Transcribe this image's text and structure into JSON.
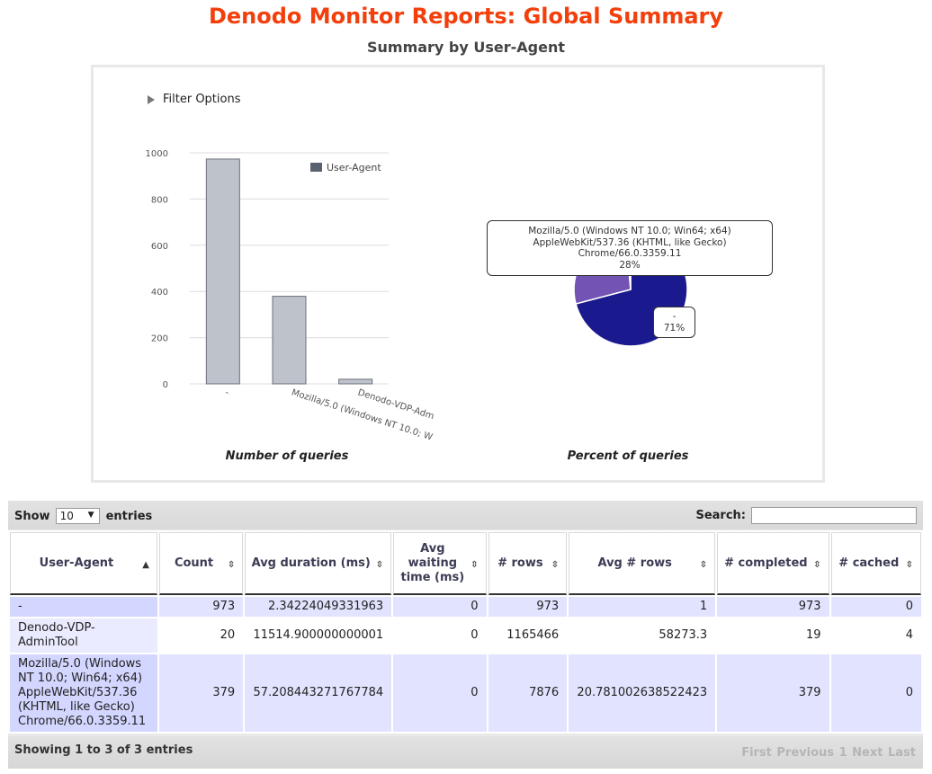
{
  "header": {
    "title": "Denodo Monitor Reports: Global Summary",
    "subtitle": "Summary by User-Agent"
  },
  "filter": {
    "label": "Filter Options"
  },
  "captions": {
    "bar": "Number of queries",
    "pie": "Percent of queries"
  },
  "colors": {
    "title": "#f23f0c",
    "bar_fill": "#bec2cb",
    "bar_stroke": "#6b6f78",
    "pie_main": "#1a1a8e",
    "pie_second": "#7354b4",
    "legend_swatch": "#5a6270"
  },
  "chart_data": [
    {
      "type": "bar",
      "categories": [
        "-",
        "Mozilla/5.0 (Windows NT 10.0; W",
        "Denodo-VDP-Adm"
      ],
      "series": [
        {
          "name": "User-Agent",
          "values": [
            973,
            379,
            20
          ]
        }
      ],
      "yticks": [
        "0",
        "200",
        "400",
        "600",
        "800",
        "1000"
      ],
      "ylim": [
        0,
        1000
      ],
      "grid": true,
      "legend": "top-right",
      "xlabel": "Number of queries"
    },
    {
      "type": "pie",
      "labels": [
        "-",
        "Mozilla/5.0 (Windows NT 10.0; Win64; x64) AppleWebKit/537.36 (KHTML, like Gecko) Chrome/66.0.3359.11",
        "Denodo-VDP-AdminTool"
      ],
      "values": [
        973,
        379,
        20
      ],
      "tooltips": [
        {
          "lines": [
            "-",
            "71%"
          ]
        },
        {
          "lines": [
            "Mozilla/5.0 (Windows NT 10.0; Win64; x64)",
            "AppleWebKit/537.36 (KHTML, like Gecko)",
            "Chrome/66.0.3359.11",
            "28%"
          ]
        }
      ],
      "xlabel": "Percent of queries"
    }
  ],
  "table_controls": {
    "show_label": "Show",
    "entries_label": "entries",
    "length_value": "10",
    "search_label": "Search:",
    "info": "Showing 1 to 3 of 3 entries",
    "paging": [
      "First",
      "Previous",
      "1",
      "Next",
      "Last"
    ]
  },
  "table": {
    "columns": [
      "User-Agent",
      "Count",
      "Avg duration (ms)",
      "Avg waiting time (ms)",
      "# rows",
      "Avg # rows",
      "# completed",
      "# cached"
    ],
    "sort_icons": [
      "▲",
      "⇳",
      "⇳",
      "⇳",
      "⇳",
      "⇳",
      "⇳",
      "⇳"
    ],
    "rows": [
      [
        "-",
        "973",
        "2.34224049331963",
        "0",
        "973",
        "1",
        "973",
        "0"
      ],
      [
        "Denodo-VDP-AdminTool",
        "20",
        "11514.900000000001",
        "0",
        "1165466",
        "58273.3",
        "19",
        "4"
      ],
      [
        "Mozilla/5.0 (Windows NT 10.0; Win64; x64) AppleWebKit/537.36 (KHTML, like Gecko) Chrome/66.0.3359.11",
        "379",
        "57.208443271767784",
        "0",
        "7876",
        "20.781002638522423",
        "379",
        "0"
      ]
    ]
  }
}
